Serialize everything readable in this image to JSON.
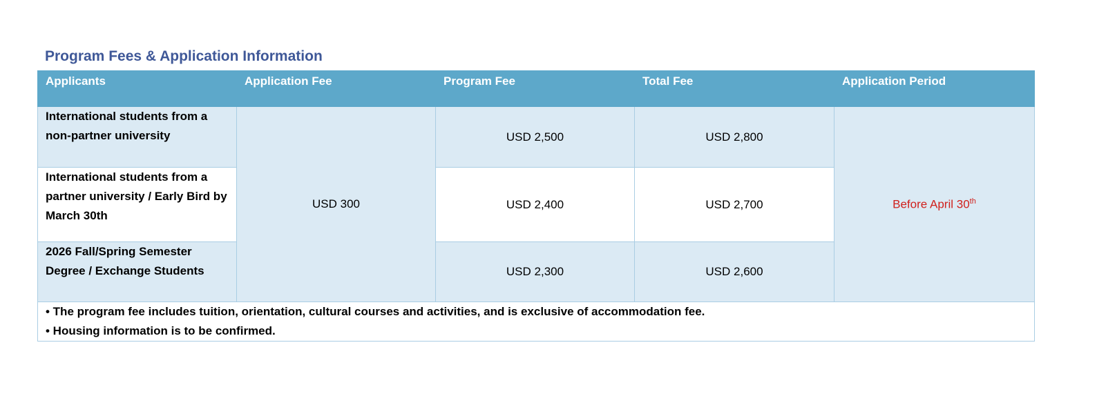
{
  "title": "Program Fees & Application Information",
  "columns": [
    "Applicants",
    "Application Fee",
    "Program Fee",
    "Total Fee",
    "Application Period"
  ],
  "rows": [
    {
      "applicant": "International students from a non-partner university",
      "program_fee": "USD 2,500",
      "total_fee": "USD 2,800"
    },
    {
      "applicant": "International students from a partner university / Early Bird by March 30th",
      "program_fee": "USD 2,400",
      "total_fee": "USD 2,700"
    },
    {
      "applicant": "2026 Fall/Spring Semester Degree / Exchange Students",
      "program_fee": "USD 2,300",
      "total_fee": "USD 2,600"
    }
  ],
  "application_fee": "USD 300",
  "application_period": {
    "text": "Before April 30",
    "sup": "th",
    "color": "#d0201c"
  },
  "notes": [
    "• The program fee includes tuition, orientation, cultural courses and activities, and is exclusive of accommodation fee.",
    "• Housing information is to be confirmed."
  ],
  "colors": {
    "header": "#5da8ca",
    "title": "#3f5898",
    "row_shade": "#dbeaf4"
  }
}
